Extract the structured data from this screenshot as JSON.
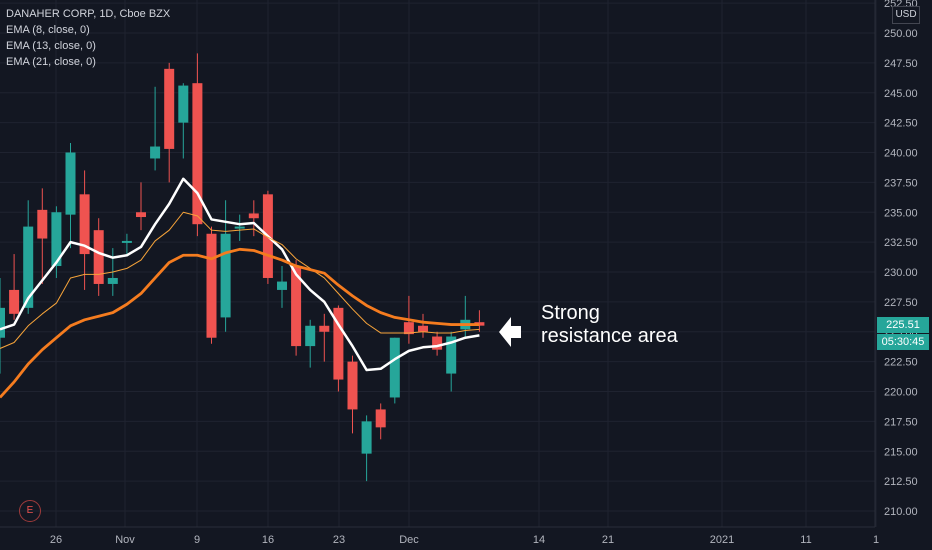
{
  "legend": {
    "symbol": "DANAHER CORP, 1D, Cboe BZX",
    "ema8": "EMA (8, close, 0)",
    "ema13": "EMA (13, close, 0)",
    "ema21": "EMA (21, close, 0)"
  },
  "annotation": {
    "line1": "Strong",
    "line2": "resistance area"
  },
  "badge": "E",
  "currency": "USD",
  "price_tag": {
    "last": "225.51",
    "countdown": "05:30:45"
  },
  "colors": {
    "up": "#26a69a",
    "down": "#ef5350",
    "ema8": "#ffffff",
    "ema13": "#f7a43a",
    "ema21": "#f57c1f",
    "background": "#131722"
  },
  "chart_data": {
    "type": "candlestick",
    "y_ticks": [
      210,
      212.5,
      215,
      217.5,
      220,
      222.5,
      225,
      227.5,
      230,
      232.5,
      235,
      237.5,
      240,
      242.5,
      245,
      247.5,
      250,
      252.5
    ],
    "x_ticks": [
      "26",
      "Nov",
      "9",
      "16",
      "23",
      "Dec",
      "14",
      "21",
      "2021",
      "11",
      "1"
    ],
    "ylim": [
      209,
      253
    ],
    "grid": true,
    "candles": [
      {
        "o": 224.5,
        "h": 229.5,
        "l": 221.5,
        "c": 227.0
      },
      {
        "o": 228.5,
        "h": 231.5,
        "l": 226.0,
        "c": 226.5
      },
      {
        "o": 227.0,
        "h": 236.0,
        "l": 226.5,
        "c": 233.8
      },
      {
        "o": 235.2,
        "h": 237.0,
        "l": 229.0,
        "c": 232.8
      },
      {
        "o": 230.5,
        "h": 235.5,
        "l": 229.5,
        "c": 235.0
      },
      {
        "o": 234.8,
        "h": 240.8,
        "l": 232.0,
        "c": 240.0
      },
      {
        "o": 236.5,
        "h": 238.5,
        "l": 228.5,
        "c": 231.5
      },
      {
        "o": 233.5,
        "h": 234.5,
        "l": 228.0,
        "c": 229.0
      },
      {
        "o": 229.0,
        "h": 232.0,
        "l": 228.0,
        "c": 229.5
      },
      {
        "o": 232.6,
        "h": 233.2,
        "l": 231.5,
        "c": 232.6
      },
      {
        "o": 235.0,
        "h": 237.5,
        "l": 233.5,
        "c": 234.6
      },
      {
        "o": 239.5,
        "h": 245.5,
        "l": 238.5,
        "c": 240.5
      },
      {
        "o": 247.0,
        "h": 247.5,
        "l": 237.5,
        "c": 240.3
      },
      {
        "o": 242.5,
        "h": 245.8,
        "l": 239.5,
        "c": 245.6
      },
      {
        "o": 245.8,
        "h": 248.3,
        "l": 233.0,
        "c": 234.0
      },
      {
        "o": 233.2,
        "h": 233.8,
        "l": 224.0,
        "c": 224.5
      },
      {
        "o": 226.2,
        "h": 236.0,
        "l": 225.0,
        "c": 233.2
      },
      {
        "o": 233.8,
        "h": 234.8,
        "l": 232.6,
        "c": 233.8
      },
      {
        "o": 234.9,
        "h": 236.0,
        "l": 233.0,
        "c": 234.5
      },
      {
        "o": 236.5,
        "h": 236.8,
        "l": 229.0,
        "c": 229.5
      },
      {
        "o": 228.5,
        "h": 230.5,
        "l": 227.0,
        "c": 229.2
      },
      {
        "o": 230.5,
        "h": 231.0,
        "l": 223.0,
        "c": 223.8
      },
      {
        "o": 223.8,
        "h": 226.0,
        "l": 222.0,
        "c": 225.5
      },
      {
        "o": 225.5,
        "h": 226.5,
        "l": 222.5,
        "c": 225.0
      },
      {
        "o": 227.0,
        "h": 227.2,
        "l": 220.0,
        "c": 221.0
      },
      {
        "o": 222.5,
        "h": 223.0,
        "l": 216.5,
        "c": 218.5
      },
      {
        "o": 214.8,
        "h": 218.0,
        "l": 212.5,
        "c": 217.5
      },
      {
        "o": 218.5,
        "h": 219.0,
        "l": 216.0,
        "c": 217.0
      },
      {
        "o": 219.5,
        "h": 224.5,
        "l": 219.0,
        "c": 224.5
      },
      {
        "o": 225.8,
        "h": 228.0,
        "l": 224.0,
        "c": 224.8
      },
      {
        "o": 225.5,
        "h": 226.5,
        "l": 224.5,
        "c": 225.0
      },
      {
        "o": 224.6,
        "h": 225.0,
        "l": 223.0,
        "c": 223.5
      },
      {
        "o": 221.5,
        "h": 225.0,
        "l": 220.0,
        "c": 224.6
      },
      {
        "o": 225.2,
        "h": 228.0,
        "l": 224.5,
        "c": 226.0
      },
      {
        "o": 225.8,
        "h": 226.8,
        "l": 225.0,
        "c": 225.51
      }
    ],
    "series": [
      {
        "name": "EMA (8, close, 0)",
        "values": [
          225.2,
          225.6,
          227.8,
          229.3,
          230.8,
          232.5,
          232.2,
          231.6,
          231.2,
          231.4,
          232.1,
          234.0,
          235.7,
          237.8,
          236.6,
          234.4,
          234.2,
          234.0,
          234.1,
          233.0,
          231.9,
          229.8,
          228.5,
          227.5,
          225.6,
          223.8,
          221.8,
          221.9,
          222.7,
          223.4,
          223.7,
          223.8,
          224.1,
          224.5,
          224.7
        ]
      },
      {
        "name": "EMA (13, close, 0)",
        "values": [
          223.6,
          224.1,
          225.5,
          226.5,
          227.4,
          229.5,
          229.8,
          229.8,
          230.0,
          230.3,
          231.0,
          232.6,
          233.5,
          235.0,
          234.7,
          233.5,
          233.4,
          233.5,
          233.6,
          232.9,
          232.3,
          231.1,
          230.3,
          229.5,
          228.2,
          226.9,
          225.7,
          224.9,
          224.9,
          224.9,
          225.0,
          224.9,
          224.9,
          225.1,
          225.2
        ]
      },
      {
        "name": "EMA (21, close, 0)",
        "values": [
          219.5,
          220.8,
          222.3,
          223.5,
          224.5,
          225.5,
          226.0,
          226.3,
          226.6,
          227.3,
          228.2,
          229.5,
          230.8,
          231.4,
          231.4,
          231.1,
          231.6,
          231.9,
          231.8,
          231.4,
          231.0,
          230.5,
          230.2,
          229.9,
          228.9,
          228.0,
          227.2,
          226.6,
          226.2,
          226.0,
          225.8,
          225.7,
          225.6,
          225.6,
          225.6
        ]
      }
    ]
  }
}
